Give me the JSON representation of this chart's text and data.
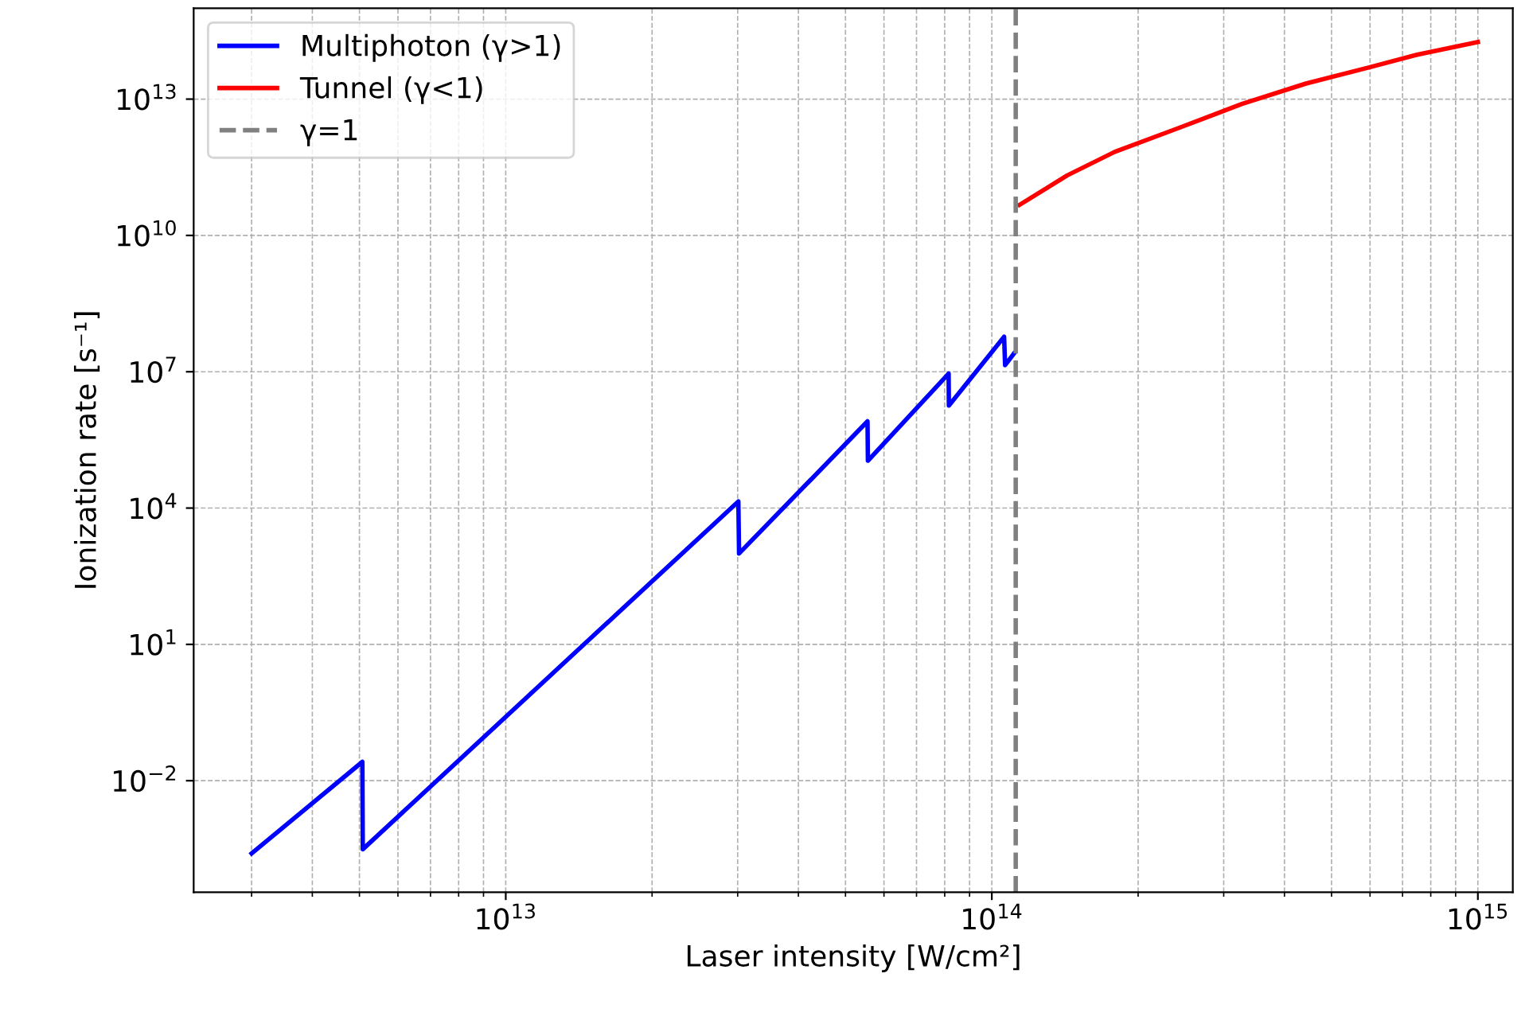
{
  "chart_data": {
    "type": "line",
    "xlabel": "Laser intensity [W/cm²]",
    "ylabel": "Ionization rate [s⁻¹]",
    "log": "xy",
    "grid": true,
    "legend": "top left",
    "line_style": "solid",
    "xlim": [
      2280000000000.0,
      1180000000000000.0
    ],
    "ylim": [
      3.5e-05,
      1000000000000000.0
    ],
    "xticks": [
      {
        "value": 10000000000000.0,
        "label": "10$^{13}$"
      },
      {
        "value": 100000000000000.0,
        "label": "10$^{14}$"
      },
      {
        "value": 1000000000000000.0,
        "label": "10$^{15}$"
      }
    ],
    "yticks": [
      {
        "value": 0.01,
        "label": "10$^{−2}$"
      },
      {
        "value": 10,
        "label": "10$^{1}$"
      },
      {
        "value": 10000.0,
        "label": "10$^{4}$"
      },
      {
        "value": 10000000.0,
        "label": "10$^{7}$"
      },
      {
        "value": 10000000000.0,
        "label": "10$^{10}$"
      },
      {
        "value": 10000000000000.0,
        "label": "10$^{13}$"
      }
    ],
    "series": [
      {
        "name": "Multiphoton (γ>1)",
        "color": "#0000ff",
        "x": [
          3000000000000.0,
          5070000000000.0,
          5080000000000.0,
          30100000000000.0,
          30200000000000.0,
          55500000000000.0,
          55600000000000.0,
          81500000000000.0,
          81600000000000.0,
          106000000000000.0,
          106500000000000.0,
          111000000000000.0
        ],
        "values": [
          0.00025,
          0.026,
          0.00031,
          14000.0,
          1000.0,
          810000.0,
          110000.0,
          9100000.0,
          1800000.0,
          59000000.0,
          14000000.0,
          25000000.0
        ]
      },
      {
        "name": "Tunnel (γ<1)",
        "color": "#ff0000",
        "x": [
          114000000000000.0,
          143000000000000.0,
          179000000000000.0,
          242000000000000.0,
          327000000000000.0,
          443000000000000.0,
          598000000000000.0,
          750000000000000.0,
          1000000000000000.0
        ],
        "values": [
          47000000000.0,
          210000000000.0,
          690000000000.0,
          2300000000000.0,
          7800000000000.0,
          22000000000000.0,
          50000000000000.0,
          95000000000000.0,
          180000000000000.0
        ]
      },
      {
        "name": "γ=1",
        "color": "#808080",
        "line_style": "dashed",
        "x": [
          112000000000000.0,
          112000000000000.0
        ],
        "values": [
          3.5e-05,
          1000000000000000.0
        ]
      }
    ]
  }
}
